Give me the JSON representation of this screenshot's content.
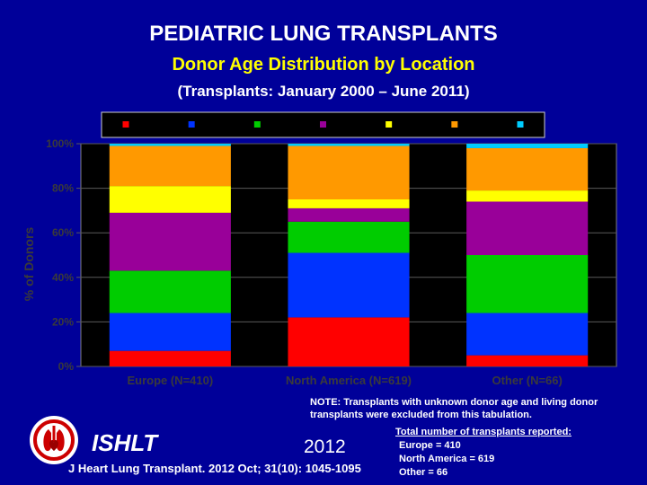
{
  "title": "PEDIATRIC LUNG TRANSPLANTS",
  "subtitle": "Donor Age Distribution by Location",
  "period": "(Transplants: January 2000 – June 2011)",
  "note": {
    "text": "NOTE: Transplants with unknown donor age and living donor transplants were excluded from this tabulation.",
    "heading": "Total number of transplants reported:",
    "counts": [
      "Europe = 410",
      "North America = 619",
      "Other = 66"
    ]
  },
  "footer": {
    "org": "ISHLT",
    "year": "2012",
    "citation": "J Heart Lung Transplant. 2012 Oct; 31(10): 1045-1095"
  },
  "colors": {
    "background": "#000099",
    "subtitle": "#ffff00",
    "plot_area": "#000000",
    "axis_text": "#3a3a3a"
  },
  "chart_data": {
    "type": "bar",
    "stacked": true,
    "categories": [
      "Europe (N=410)",
      "North America (N=619)",
      "Other (N=66)"
    ],
    "ylabel": "% of Donors",
    "ylim": [
      0,
      100
    ],
    "yticks": [
      "0%",
      "20%",
      "40%",
      "60%",
      "80%",
      "100%"
    ],
    "legend_position": "top",
    "series": [
      {
        "color": "#ff0000",
        "values": [
          7,
          22,
          5
        ]
      },
      {
        "color": "#0033ff",
        "values": [
          17,
          29,
          19
        ]
      },
      {
        "color": "#00cc00",
        "values": [
          19,
          14,
          26
        ]
      },
      {
        "color": "#990099",
        "values": [
          26,
          6,
          24
        ]
      },
      {
        "color": "#ffff00",
        "values": [
          12,
          4,
          5
        ]
      },
      {
        "color": "#ff9900",
        "values": [
          18,
          24,
          19
        ]
      },
      {
        "color": "#00ccff",
        "values": [
          1,
          1,
          2
        ]
      }
    ]
  }
}
